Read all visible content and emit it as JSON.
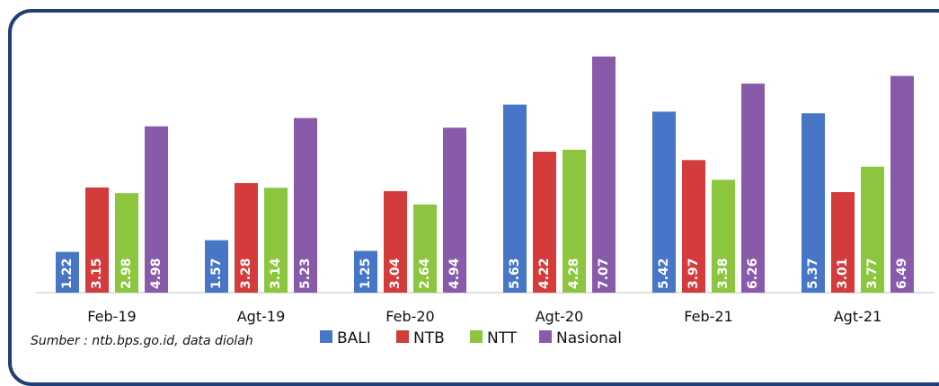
{
  "chart_data": {
    "type": "bar",
    "categories": [
      "Feb-19",
      "Agt-19",
      "Feb-20",
      "Agt-20",
      "Feb-21",
      "Agt-21"
    ],
    "series": [
      {
        "name": "BALI",
        "color": "#4676c5",
        "values": [
          1.22,
          1.57,
          1.25,
          5.63,
          5.42,
          5.37
        ],
        "labels": [
          "1.22",
          "1.57",
          "1.25",
          "5.63",
          "5.42",
          "5.37"
        ]
      },
      {
        "name": "NTB",
        "color": "#d43b3b",
        "values": [
          3.15,
          3.28,
          3.04,
          4.22,
          3.97,
          3.01
        ],
        "labels": [
          "3.15",
          "3.28",
          "3.04",
          "4.22",
          "3.97",
          "3.01"
        ]
      },
      {
        "name": "NTT",
        "color": "#8cc63f",
        "values": [
          2.98,
          3.14,
          2.64,
          4.28,
          3.38,
          3.77
        ],
        "labels": [
          "2.98",
          "3.14",
          "2.64",
          "4.28",
          "3.38",
          "3.77"
        ]
      },
      {
        "name": "Nasional",
        "color": "#8a5aaa",
        "values": [
          4.98,
          5.23,
          4.94,
          7.07,
          6.26,
          6.49
        ],
        "labels": [
          "4.98",
          "5.23",
          "4.94",
          "7.07",
          "6.26",
          "6.49"
        ]
      }
    ],
    "ylim": [
      0,
      7.07
    ],
    "grid": false,
    "legend": "bottom-center",
    "title": "",
    "xlabel": "",
    "ylabel": ""
  },
  "source_note": "Sumber : ntb.bps.go.id, data diolah"
}
